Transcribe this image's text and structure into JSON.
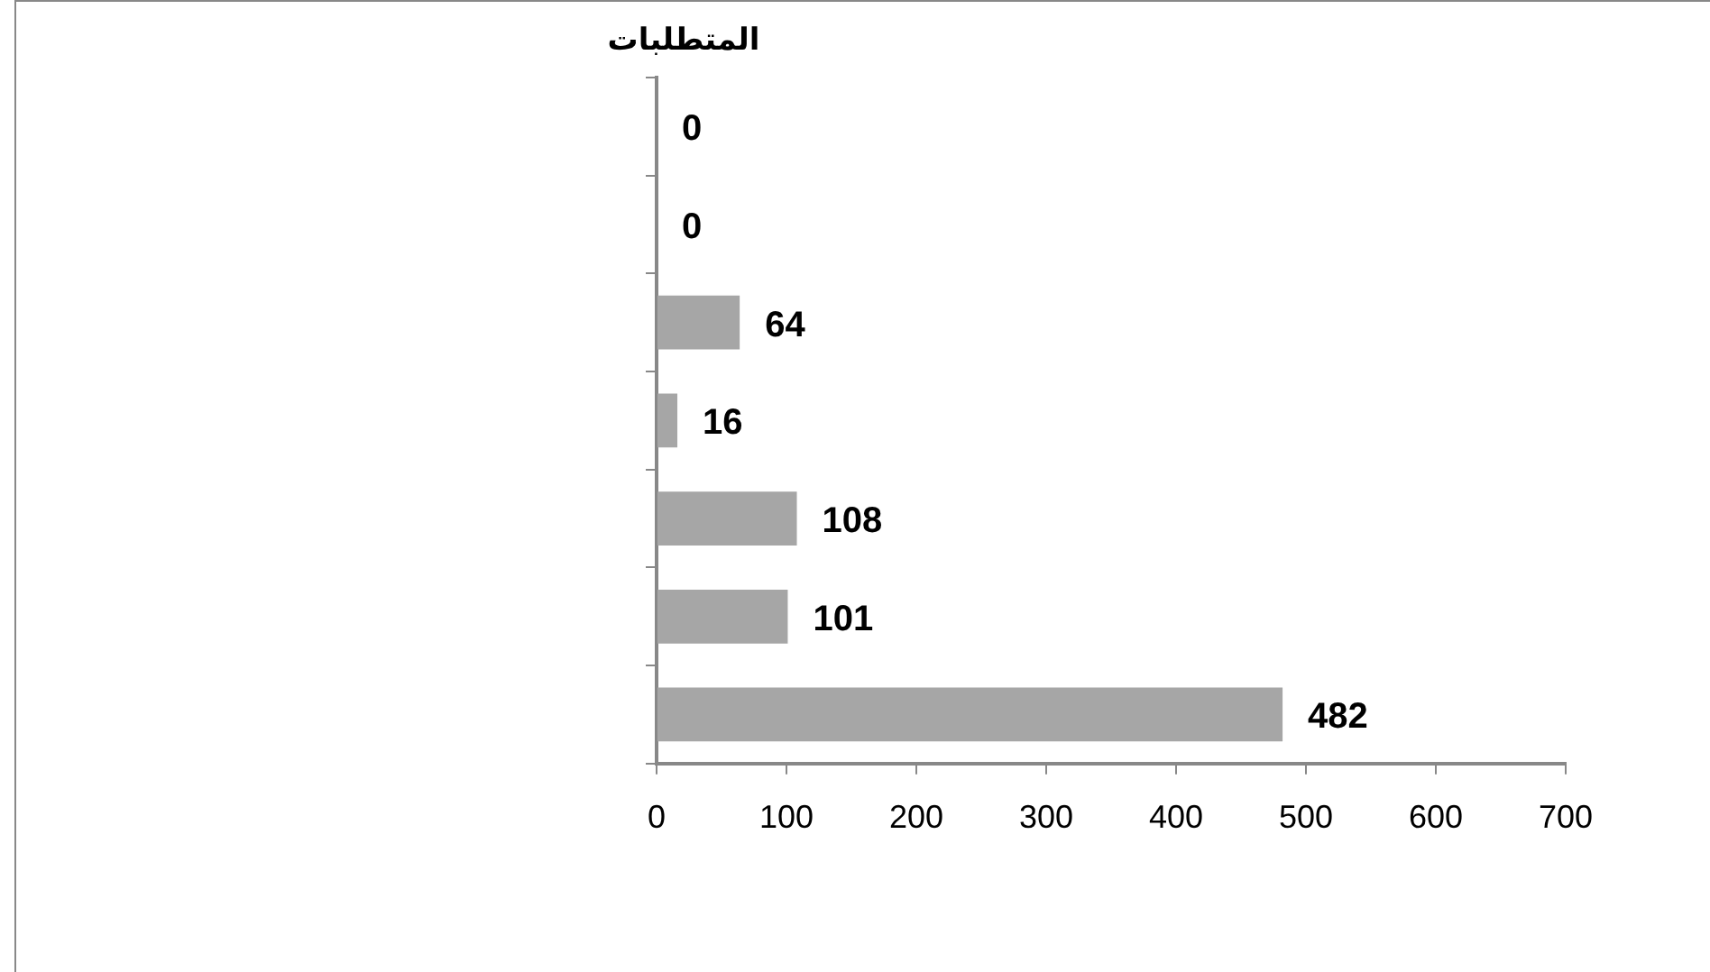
{
  "chart_data": {
    "type": "bar",
    "orientation": "horizontal",
    "title": "المتطلبات",
    "categories": [
      null,
      null,
      null,
      null,
      null,
      null,
      null
    ],
    "values": [
      0,
      0,
      64,
      16,
      108,
      101,
      482
    ],
    "color": "#a6a6a6",
    "xlim": [
      0,
      700
    ],
    "xticks": [
      0,
      100,
      200,
      300,
      400,
      500,
      600,
      700
    ],
    "grid": false,
    "legend": false,
    "data_labels": true
  }
}
